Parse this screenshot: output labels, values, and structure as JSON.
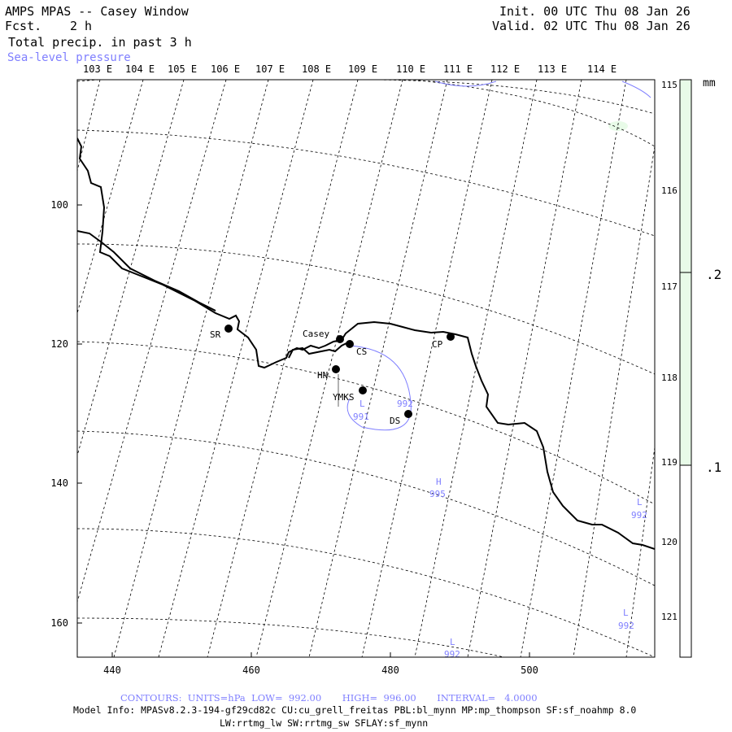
{
  "header": {
    "title": "AMPS MPAS -- Casey Window",
    "fcst_label": "Fcst.",
    "fcst_value": "2 h",
    "field_label": "Total precip. in past 3 h",
    "overlay_label": "Sea-level pressure",
    "init": "Init. 00 UTC Thu 08 Jan 26",
    "valid": "Valid. 02 UTC Thu 08 Jan 26"
  },
  "map": {
    "top_longitudes": [
      "103 E",
      "104 E",
      "105 E",
      "106 E",
      "107 E",
      "108 E",
      "109 E",
      "110 E",
      "111 E",
      "112 E",
      "113 E",
      "114 E"
    ],
    "right_longitudes": [
      "115 E",
      "116 E",
      "117 E",
      "118 E",
      "119 E",
      "120 E",
      "121 E"
    ],
    "x_ticks": [
      "440",
      "460",
      "480",
      "500"
    ],
    "y_ticks": [
      "100",
      "120",
      "140",
      "160"
    ],
    "stations": [
      {
        "id": "SR",
        "label": "SR"
      },
      {
        "id": "Casey",
        "label": "Casey"
      },
      {
        "id": "CS",
        "label": "CS"
      },
      {
        "id": "CP",
        "label": "CP"
      },
      {
        "id": "HN",
        "label": "HN"
      },
      {
        "id": "YMKS",
        "label": "YMKS"
      },
      {
        "id": "DS",
        "label": "DS"
      }
    ],
    "pressure_labels": [
      {
        "kind": "L",
        "value": "991"
      },
      {
        "kind": "",
        "value": "992"
      },
      {
        "kind": "H",
        "value": "995"
      },
      {
        "kind": "L",
        "value": "992"
      },
      {
        "kind": "L",
        "value": "992"
      },
      {
        "kind": "L",
        "value": "992"
      }
    ]
  },
  "colorbar": {
    "unit": "mm",
    "labels": [
      ".2",
      ".1"
    ],
    "fill_color": "#e8fbe8"
  },
  "colors": {
    "contour": "#7f7fff",
    "coast": "#000000"
  },
  "footer": {
    "contours": "CONTOURS:  UNITS=hPa  LOW=  992.00       HIGH=  996.00       INTERVAL=   4.0000",
    "model_info_1": "Model Info: MPASv8.2.3-194-gf29cd82c CU:cu_grell_freitas PBL:bl_mynn MP:mp_thompson SF:sf_noahmp 8.0",
    "model_info_2": "LW:rrtmg_lw SW:rrtmg_sw SFLAY:sf_mynn"
  }
}
